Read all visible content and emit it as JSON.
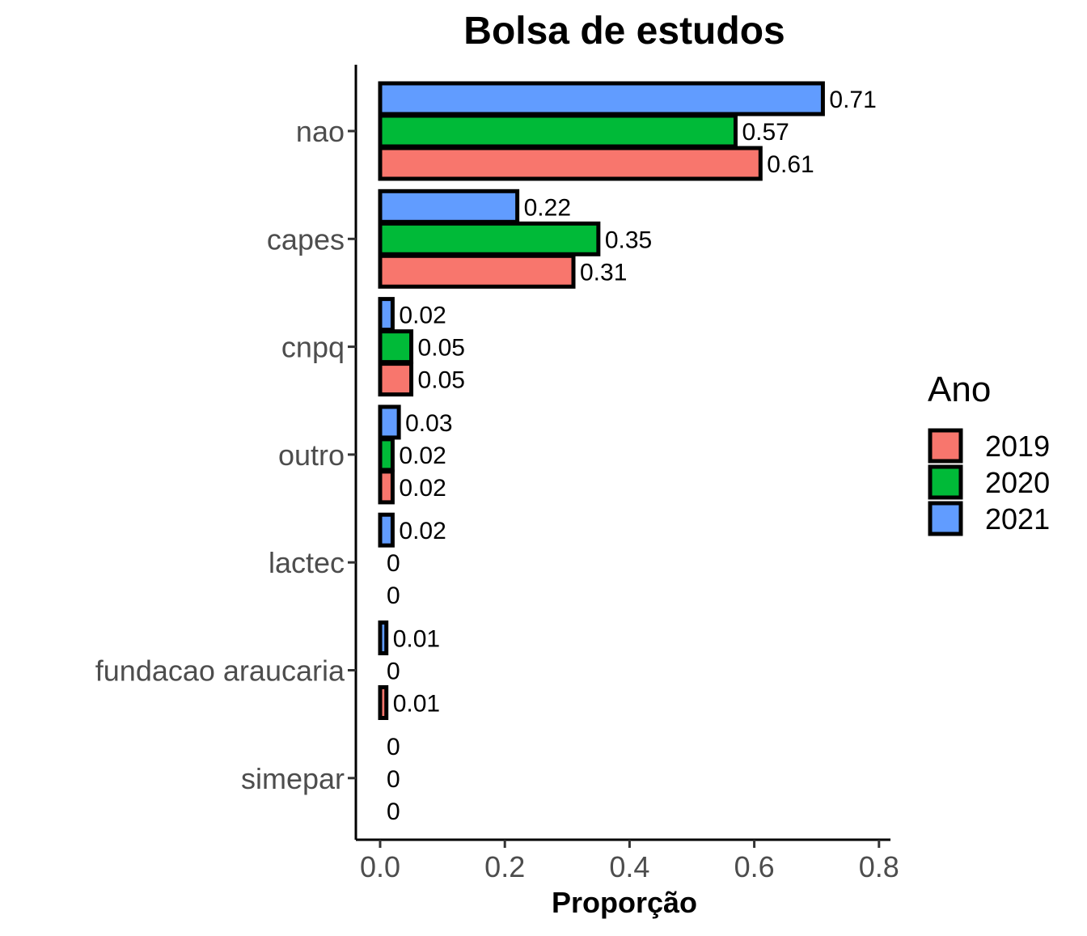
{
  "chart_data": {
    "type": "bar",
    "orientation": "horizontal",
    "title": "Bolsa de estudos",
    "xlabel": "Proporção",
    "ylabel": "",
    "xlim": [
      0,
      0.8
    ],
    "x_ticks": [
      0.0,
      0.2,
      0.4,
      0.6,
      0.8
    ],
    "x_tick_labels": [
      "0.0",
      "0.2",
      "0.4",
      "0.6",
      "0.8"
    ],
    "categories": [
      "nao",
      "capes",
      "cnpq",
      "outro",
      "lactec",
      "fundacao araucaria",
      "simepar"
    ],
    "series": [
      {
        "name": "2019",
        "color": "#F8766D",
        "values": [
          0.61,
          0.31,
          0.05,
          0.02,
          0,
          0.01,
          0
        ],
        "labels": [
          "0.61",
          "0.31",
          "0.05",
          "0.02",
          "0",
          "0.01",
          "0"
        ]
      },
      {
        "name": "2020",
        "color": "#00BA38",
        "values": [
          0.57,
          0.35,
          0.05,
          0.02,
          0,
          0,
          0
        ],
        "labels": [
          "0.57",
          "0.35",
          "0.05",
          "0.02",
          "0",
          "0",
          "0"
        ]
      },
      {
        "name": "2021",
        "color": "#619CFF",
        "values": [
          0.71,
          0.22,
          0.02,
          0.03,
          0.02,
          0.01,
          0
        ],
        "labels": [
          "0.71",
          "0.22",
          "0.02",
          "0.03",
          "0.02",
          "0.01",
          "0"
        ]
      }
    ],
    "legend": {
      "title": "Ano",
      "position": "right"
    },
    "grid": false,
    "bar_outline_color": "#000000"
  }
}
